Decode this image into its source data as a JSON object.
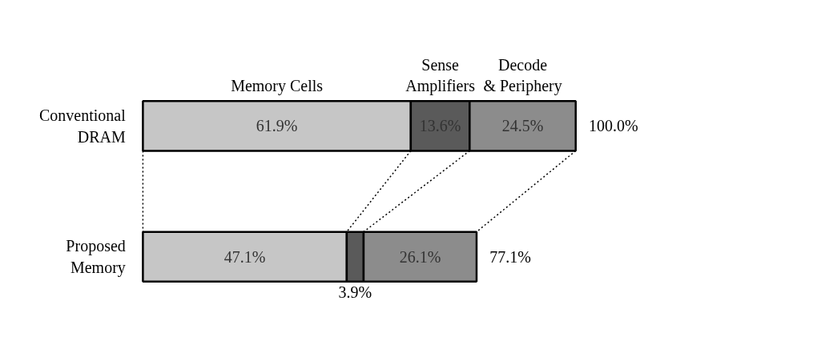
{
  "chart_data": {
    "type": "bar",
    "orientation": "horizontal",
    "stacked": true,
    "grid": false,
    "tick_labels": false,
    "categories": [
      "Conventional DRAM",
      "Proposed Memory"
    ],
    "series": [
      {
        "name": "Memory Cells",
        "color": "#c6c6c6",
        "values": [
          61.9,
          47.1
        ],
        "value_labels": [
          "61.9%",
          "47.1%"
        ]
      },
      {
        "name": "Sense Amplifiers",
        "color": "#5a5a5a",
        "values": [
          13.6,
          3.9
        ],
        "value_labels": [
          "13.6%",
          "3.9%"
        ]
      },
      {
        "name": "Decode & Periphery",
        "color": "#8c8c8c",
        "values": [
          24.5,
          26.1
        ],
        "value_labels": [
          "24.5%",
          "26.1%"
        ]
      }
    ],
    "totals": [
      "100.0%",
      "77.1%"
    ]
  }
}
